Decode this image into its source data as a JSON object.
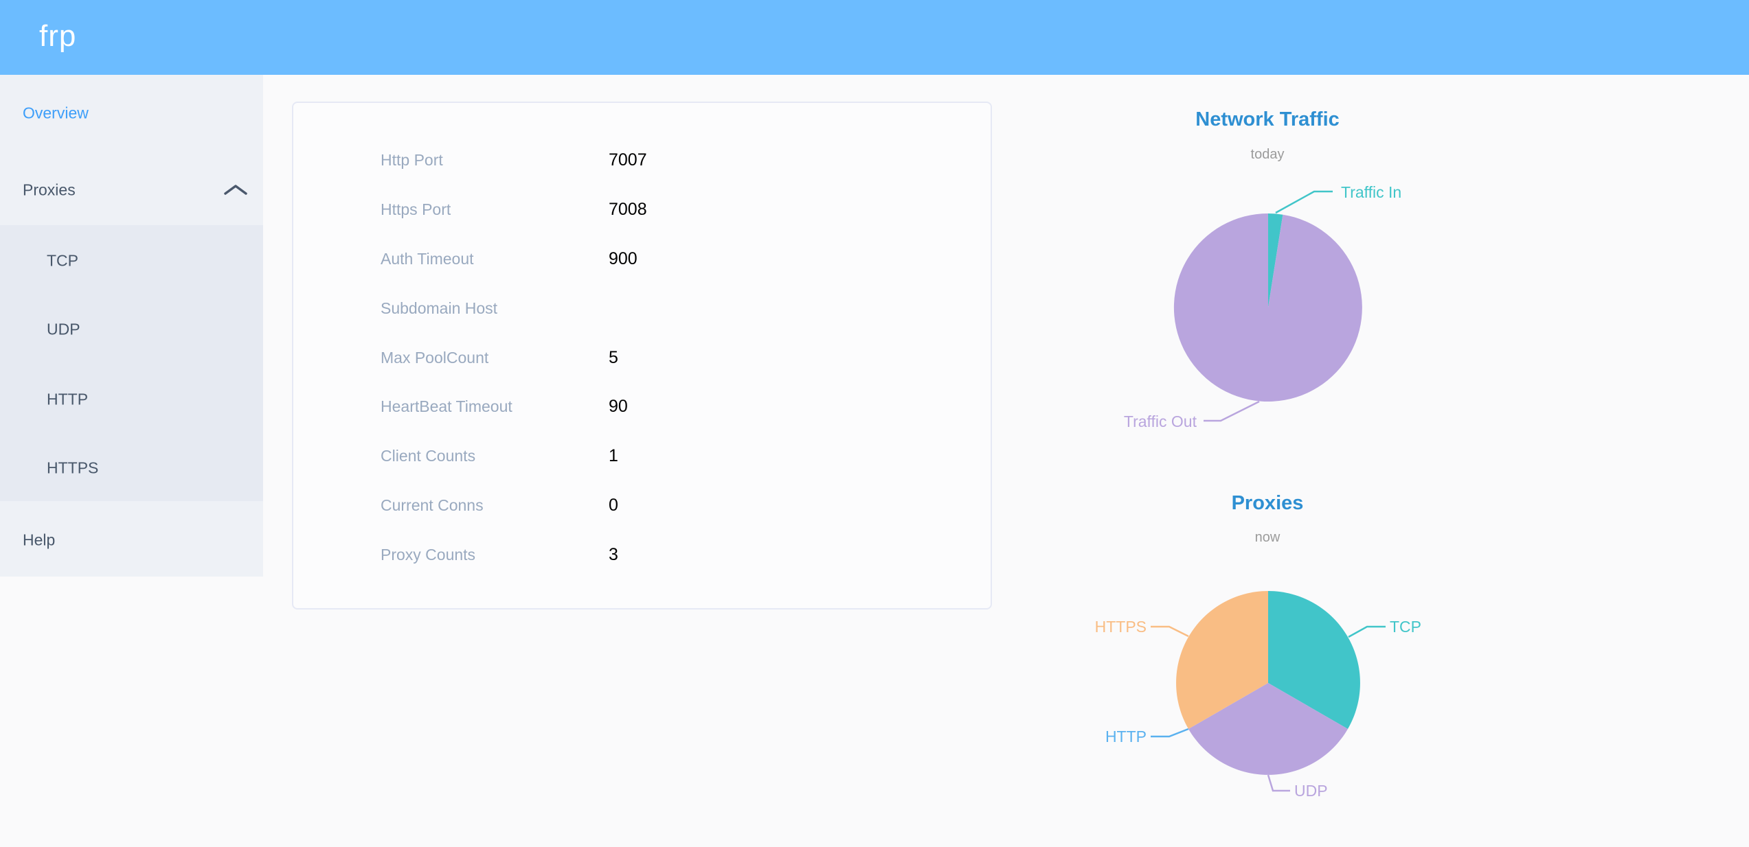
{
  "header": {
    "logo": "frp"
  },
  "sidebar": {
    "overview_label": "Overview",
    "proxies_label": "Proxies",
    "proxy_types": [
      "TCP",
      "UDP",
      "HTTP",
      "HTTPS"
    ],
    "help_label": "Help"
  },
  "server_info": {
    "rows": [
      {
        "label": "Http Port",
        "value": "7007"
      },
      {
        "label": "Https Port",
        "value": "7008"
      },
      {
        "label": "Auth Timeout",
        "value": "900"
      },
      {
        "label": "Subdomain Host",
        "value": ""
      },
      {
        "label": "Max PoolCount",
        "value": "5"
      },
      {
        "label": "HeartBeat Timeout",
        "value": "90"
      },
      {
        "label": "Client Counts",
        "value": "1"
      },
      {
        "label": "Current Conns",
        "value": "0"
      },
      {
        "label": "Proxy Counts",
        "value": "3"
      }
    ]
  },
  "chart_data": [
    {
      "type": "pie",
      "title": "Network Traffic",
      "subtitle": "today",
      "legend_position": "callout-labels",
      "slices": [
        {
          "name": "Traffic In",
          "value": 2.5,
          "color": "#41c5c9"
        },
        {
          "name": "Traffic Out",
          "value": 97.5,
          "color": "#b9a5de"
        }
      ],
      "note_units": "percent share of pie arc"
    },
    {
      "type": "pie",
      "title": "Proxies",
      "subtitle": "now",
      "legend_position": "callout-labels",
      "slices": [
        {
          "name": "TCP",
          "value": 1,
          "color": "#41c5c9"
        },
        {
          "name": "UDP",
          "value": 1,
          "color": "#b9a5de"
        },
        {
          "name": "HTTP",
          "value": 0,
          "color": "#5ab1ef"
        },
        {
          "name": "HTTPS",
          "value": 1,
          "color": "#f9bd84"
        }
      ],
      "note_units": "proxy counts"
    }
  ],
  "colors": {
    "header_bg": "#6cbcff",
    "sidebar_bg": "#eef1f6",
    "submenu_bg": "#e6eaf2",
    "menu_text": "#48576a",
    "menu_active": "#3d9ef9",
    "page_bg": "#fafafb",
    "card_bg": "#fcfcfd",
    "card_border": "#e6e9f5",
    "label_color": "#99a9bf",
    "value_color": "#000000",
    "title_color": "#2e8fd2",
    "subtitle_color": "#9b9b9b"
  }
}
